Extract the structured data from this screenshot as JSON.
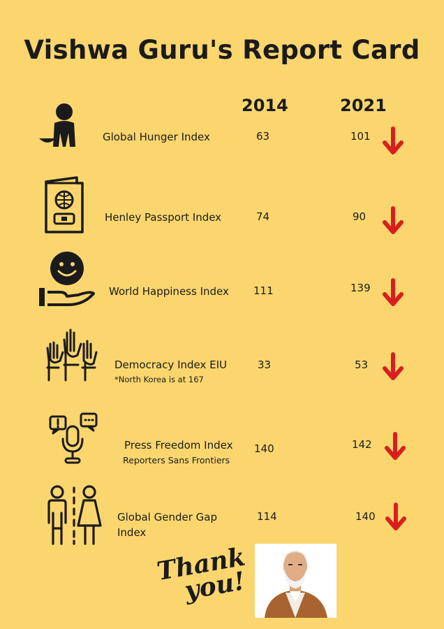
{
  "title": "Vishwa Guru's Report Card",
  "years": [
    "2014",
    "2021"
  ],
  "rows": [
    {
      "label": "Global Hunger Index",
      "sublabel": "",
      "v2014": "63",
      "v2021": "101",
      "icon": "hunger-icon"
    },
    {
      "label": "Henley Passport Index",
      "sublabel": "",
      "v2014": "74",
      "v2021": "90",
      "icon": "passport-icon"
    },
    {
      "label": "World Happiness Index",
      "sublabel": "",
      "v2014": "111",
      "v2021": "139",
      "icon": "happiness-icon"
    },
    {
      "label": "Democracy Index EIU",
      "sublabel": "*North Korea is at 167",
      "v2014": "33",
      "v2021": "53",
      "icon": "raised-hands-icon"
    },
    {
      "label": "Press Freedom Index",
      "sublabel": "Reporters Sans Frontiers",
      "v2014": "140",
      "v2021": "142",
      "icon": "microphone-icon"
    },
    {
      "label": "Global Gender Gap",
      "label2": "Index",
      "sublabel": "",
      "v2014": "114",
      "v2021": "140",
      "icon": "gender-icon"
    }
  ],
  "footer": {
    "thanks_line1": "Thank",
    "thanks_line2": "you!"
  },
  "colors": {
    "background": "#fbd56e",
    "arrow": "#d81e1e",
    "text": "#1b1b1b"
  }
}
